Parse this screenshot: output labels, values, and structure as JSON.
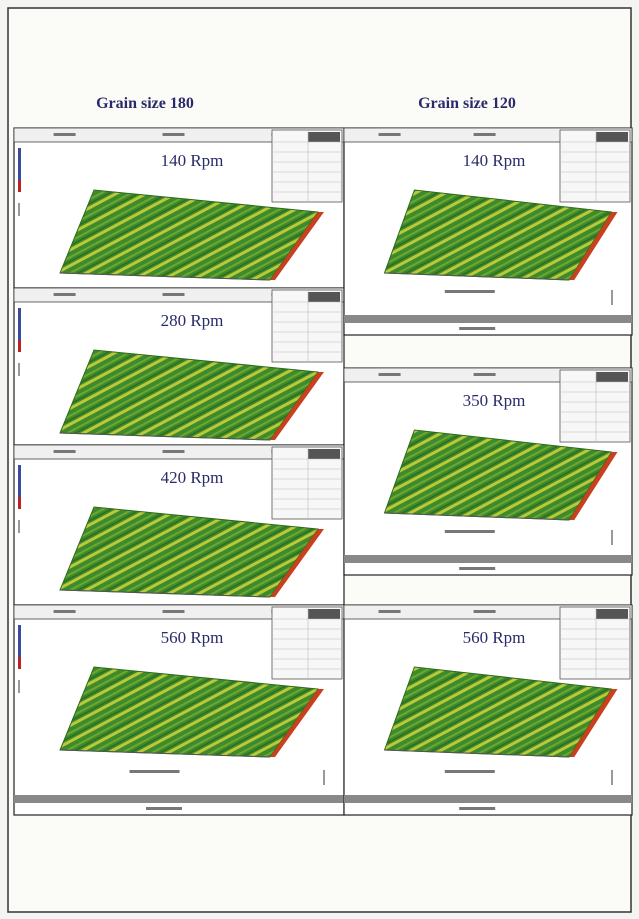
{
  "columns": [
    {
      "title": "Grain size 180",
      "panels": [
        {
          "label": "140 Rpm"
        },
        {
          "label": "280 Rpm"
        },
        {
          "label": "420 Rpm"
        },
        {
          "label": "560 Rpm"
        }
      ]
    },
    {
      "title": "Grain size 120",
      "panels": [
        {
          "label": "140 Rpm"
        },
        {
          "label": "350 Rpm"
        },
        {
          "label": "560 Rpm"
        }
      ]
    }
  ]
}
